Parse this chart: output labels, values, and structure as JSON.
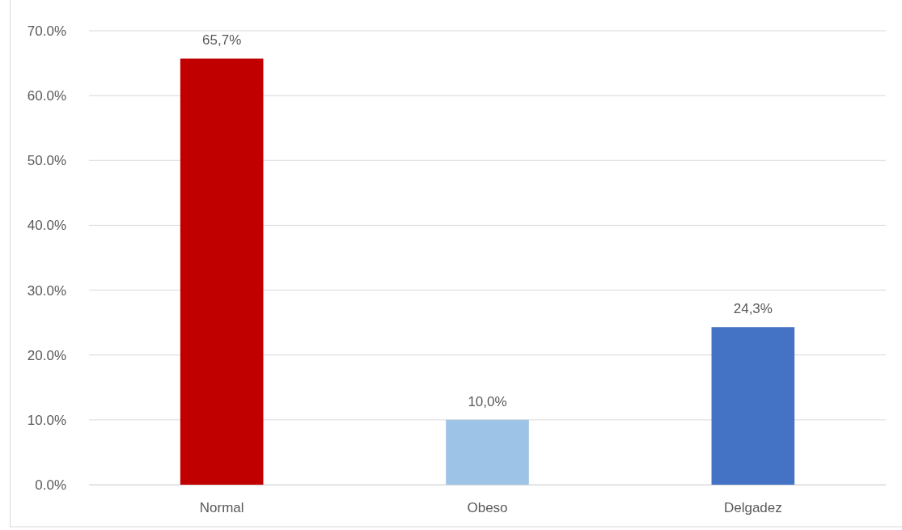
{
  "chart_data": {
    "type": "bar",
    "categories": [
      "Normal",
      "Obeso",
      "Delgadez"
    ],
    "values": [
      65.7,
      10.0,
      24.3
    ],
    "colors": [
      "#c00000",
      "#9dc3e6",
      "#4472c4"
    ],
    "value_labels": [
      "65,7%",
      "10,0%",
      "24,3%"
    ],
    "ylim": [
      0,
      70
    ],
    "yticks": [
      {
        "value": 0,
        "label": "0.0%"
      },
      {
        "value": 10,
        "label": "10.0%"
      },
      {
        "value": 20,
        "label": "20.0%"
      },
      {
        "value": 30,
        "label": "30.0%"
      },
      {
        "value": 40,
        "label": "40.0%"
      },
      {
        "value": 50,
        "label": "50.0%"
      },
      {
        "value": 60,
        "label": "60.0%"
      },
      {
        "value": 70,
        "label": "70.0%"
      }
    ],
    "grid": "y"
  }
}
